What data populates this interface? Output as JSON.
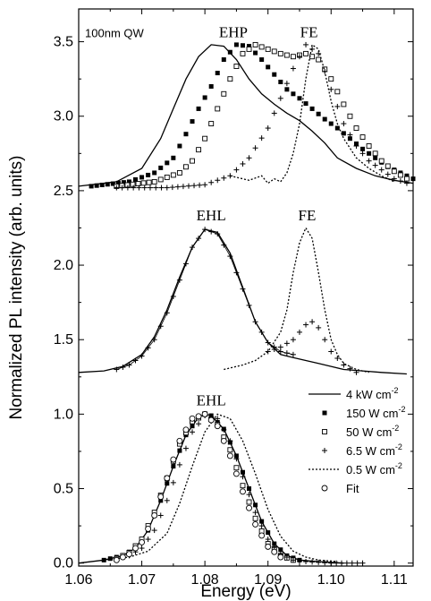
{
  "chart_data": {
    "type": "line",
    "xlabel": "Energy (eV)",
    "ylabel": "Normalized PL intensity (arb. units)",
    "xlim": [
      1.06,
      1.113
    ],
    "ylim": [
      -0.02,
      3.72
    ],
    "x_ticks": [
      "1.06",
      "1.07",
      "1.08",
      "1.09",
      "1.10",
      "1.11"
    ],
    "y_ticks": [
      "0.0",
      "0.5",
      "1.0",
      "1.5",
      "2.0",
      "2.5",
      "3.0",
      "3.5"
    ],
    "grid": false,
    "legend_position": "right",
    "annotations": [
      {
        "text": "100nm QW",
        "x": 1.061,
        "y": 3.53
      },
      {
        "text": "EHP",
        "x": 1.0845,
        "y": 3.53
      },
      {
        "text": "FE",
        "x": 1.0965,
        "y": 3.53
      },
      {
        "text": "EHL",
        "x": 1.081,
        "y": 2.3
      },
      {
        "text": "FE",
        "x": 1.0962,
        "y": 2.3
      },
      {
        "text": "EHL",
        "x": 1.081,
        "y": 1.06
      }
    ],
    "legend": [
      {
        "label": "4 kW cm",
        "sup": "-2",
        "style": "solid"
      },
      {
        "label": "150 W cm",
        "sup": "-2",
        "style": "filled-square"
      },
      {
        "label": "50 W cm",
        "sup": "-2",
        "style": "open-square"
      },
      {
        "label": "6.5 W cm",
        "sup": "-2",
        "style": "plus"
      },
      {
        "label": "0.5 W cm",
        "sup": "-2",
        "style": "dotted"
      },
      {
        "label": "Fit",
        "sup": "",
        "style": "open-circle"
      }
    ],
    "panels": [
      {
        "name": "top",
        "baseline": 2.52,
        "series": [
          {
            "style": "solid",
            "x": [
              1.06,
              1.066,
              1.07,
              1.073,
              1.075,
              1.077,
              1.079,
              1.081,
              1.083,
              1.085,
              1.087,
              1.089,
              1.091,
              1.093,
              1.095,
              1.097,
              1.099,
              1.101,
              1.104,
              1.107,
              1.11,
              1.113
            ],
            "y": [
              2.53,
              2.56,
              2.65,
              2.85,
              3.05,
              3.25,
              3.4,
              3.48,
              3.47,
              3.38,
              3.25,
              3.15,
              3.08,
              3.02,
              2.97,
              2.9,
              2.82,
              2.72,
              2.65,
              2.6,
              2.57,
              2.55
            ]
          },
          {
            "style": "filled-square",
            "x": [
              1.062,
              1.068,
              1.072,
              1.075,
              1.077,
              1.079,
              1.081,
              1.083,
              1.085,
              1.087,
              1.089,
              1.091,
              1.093,
              1.095,
              1.097,
              1.099,
              1.101,
              1.103,
              1.105,
              1.107,
              1.109,
              1.111,
              1.113
            ],
            "y": [
              2.53,
              2.56,
              2.62,
              2.72,
              2.88,
              3.05,
              3.2,
              3.38,
              3.48,
              3.47,
              3.38,
              3.28,
              3.18,
              3.12,
              3.05,
              2.98,
              2.92,
              2.85,
              2.78,
              2.72,
              2.66,
              2.62,
              2.58
            ]
          },
          {
            "style": "open-square",
            "x": [
              1.066,
              1.072,
              1.076,
              1.078,
              1.08,
              1.082,
              1.084,
              1.086,
              1.088,
              1.09,
              1.092,
              1.094,
              1.096,
              1.098,
              1.1,
              1.102,
              1.104,
              1.106,
              1.108,
              1.11,
              1.112
            ],
            "y": [
              2.53,
              2.56,
              2.62,
              2.7,
              2.85,
              3.05,
              3.25,
              3.42,
              3.48,
              3.45,
              3.42,
              3.4,
              3.42,
              3.38,
              3.25,
              3.08,
              2.92,
              2.8,
              2.7,
              2.63,
              2.58
            ]
          },
          {
            "style": "plus",
            "x": [
              1.066,
              1.074,
              1.08,
              1.084,
              1.087,
              1.09,
              1.092,
              1.094,
              1.096,
              1.098,
              1.1,
              1.102,
              1.104,
              1.106,
              1.108,
              1.11,
              1.112
            ],
            "y": [
              2.52,
              2.52,
              2.54,
              2.6,
              2.72,
              2.92,
              3.12,
              3.32,
              3.48,
              3.42,
              3.18,
              2.95,
              2.8,
              2.7,
              2.64,
              2.58,
              2.55
            ]
          },
          {
            "style": "dotted",
            "x": [
              1.084,
              1.087,
              1.089,
              1.09,
              1.091,
              1.092,
              1.093,
              1.094,
              1.095,
              1.096,
              1.097,
              1.098,
              1.099,
              1.1,
              1.101,
              1.102,
              1.104,
              1.106,
              1.108,
              1.11
            ],
            "y": [
              2.6,
              2.57,
              2.6,
              2.55,
              2.58,
              2.56,
              2.62,
              2.75,
              2.95,
              3.25,
              3.48,
              3.45,
              3.3,
              3.1,
              2.95,
              2.85,
              2.72,
              2.65,
              2.6,
              2.56
            ]
          }
        ]
      },
      {
        "name": "middle",
        "baseline": 1.28,
        "series": [
          {
            "style": "solid",
            "x": [
              1.06,
              1.064,
              1.067,
              1.07,
              1.072,
              1.074,
              1.076,
              1.078,
              1.08,
              1.082,
              1.084,
              1.086,
              1.088,
              1.09,
              1.092,
              1.094,
              1.096,
              1.098,
              1.1,
              1.102,
              1.105,
              1.108,
              1.112
            ],
            "y": [
              1.28,
              1.29,
              1.32,
              1.4,
              1.52,
              1.7,
              1.92,
              2.12,
              2.24,
              2.22,
              2.08,
              1.85,
              1.62,
              1.48,
              1.4,
              1.38,
              1.36,
              1.34,
              1.32,
              1.3,
              1.29,
              1.28,
              1.27
            ]
          },
          {
            "style": "fit",
            "x": [
              1.066,
              1.068,
              1.07,
              1.072,
              1.074,
              1.076,
              1.078,
              1.08,
              1.082,
              1.084,
              1.086,
              1.088,
              1.09,
              1.092,
              1.094
            ],
            "y": [
              1.3,
              1.33,
              1.39,
              1.5,
              1.68,
              1.9,
              2.12,
              2.24,
              2.21,
              2.06,
              1.84,
              1.62,
              1.48,
              1.42,
              1.4
            ]
          },
          {
            "style": "dotted",
            "x": [
              1.083,
              1.086,
              1.088,
              1.09,
              1.092,
              1.093,
              1.094,
              1.095,
              1.096,
              1.097,
              1.098,
              1.099,
              1.1,
              1.101,
              1.102,
              1.104,
              1.106
            ],
            "y": [
              1.3,
              1.33,
              1.36,
              1.42,
              1.55,
              1.7,
              1.95,
              2.15,
              2.25,
              2.18,
              1.95,
              1.7,
              1.5,
              1.4,
              1.34,
              1.3,
              1.28
            ]
          },
          {
            "style": "plus",
            "x": [
              1.09,
              1.092,
              1.094,
              1.095,
              1.096,
              1.097,
              1.098,
              1.099,
              1.1,
              1.102,
              1.104
            ],
            "y": [
              1.42,
              1.45,
              1.5,
              1.55,
              1.6,
              1.62,
              1.58,
              1.5,
              1.42,
              1.33,
              1.28
            ]
          }
        ]
      },
      {
        "name": "bottom",
        "baseline": 0.0,
        "series": [
          {
            "style": "solid",
            "x": [
              1.06,
              1.064,
              1.067,
              1.069,
              1.071,
              1.073,
              1.075,
              1.077,
              1.079,
              1.08,
              1.081,
              1.083,
              1.085,
              1.087,
              1.089,
              1.091,
              1.093,
              1.095,
              1.098,
              1.102
            ],
            "y": [
              0.0,
              0.02,
              0.05,
              0.1,
              0.22,
              0.42,
              0.65,
              0.86,
              0.98,
              1.0,
              0.99,
              0.9,
              0.72,
              0.5,
              0.28,
              0.13,
              0.05,
              0.02,
              0.01,
              0.0
            ]
          },
          {
            "style": "filled-square",
            "x": [
              1.064,
              1.067,
              1.069,
              1.071,
              1.073,
              1.075,
              1.077,
              1.079,
              1.08,
              1.081,
              1.083,
              1.085,
              1.087,
              1.089,
              1.091,
              1.093,
              1.095
            ],
            "y": [
              0.02,
              0.05,
              0.1,
              0.22,
              0.42,
              0.65,
              0.86,
              0.98,
              1.0,
              0.99,
              0.9,
              0.72,
              0.5,
              0.28,
              0.13,
              0.05,
              0.02
            ]
          },
          {
            "style": "open-square",
            "x": [
              1.066,
              1.068,
              1.07,
              1.072,
              1.074,
              1.076,
              1.078,
              1.08,
              1.082,
              1.084,
              1.086,
              1.088,
              1.09,
              1.092,
              1.094
            ],
            "y": [
              0.03,
              0.07,
              0.16,
              0.34,
              0.57,
              0.8,
              0.95,
              1.0,
              0.93,
              0.76,
              0.52,
              0.3,
              0.13,
              0.05,
              0.02
            ]
          },
          {
            "style": "plus",
            "x": [
              1.068,
              1.07,
              1.072,
              1.074,
              1.076,
              1.078,
              1.08,
              1.082,
              1.084,
              1.086,
              1.088,
              1.09,
              1.092,
              1.094,
              1.096,
              1.1,
              1.105
            ],
            "y": [
              0.05,
              0.1,
              0.22,
              0.42,
              0.66,
              0.88,
              0.99,
              0.97,
              0.82,
              0.58,
              0.34,
              0.16,
              0.06,
              0.02,
              0.01,
              0.0,
              0.0
            ]
          },
          {
            "style": "dotted",
            "x": [
              1.064,
              1.068,
              1.071,
              1.074,
              1.076,
              1.078,
              1.08,
              1.082,
              1.084,
              1.086,
              1.088,
              1.09,
              1.092,
              1.094,
              1.096,
              1.098,
              1.101
            ],
            "y": [
              0.02,
              0.04,
              0.08,
              0.2,
              0.4,
              0.65,
              0.88,
              1.0,
              0.97,
              0.82,
              0.6,
              0.36,
              0.18,
              0.08,
              0.04,
              0.02,
              0.01
            ]
          },
          {
            "style": "open-circle",
            "x": [
              1.066,
              1.068,
              1.07,
              1.072,
              1.074,
              1.076,
              1.078,
              1.08,
              1.082,
              1.084,
              1.086,
              1.088,
              1.09,
              1.092
            ],
            "y": [
              0.02,
              0.06,
              0.14,
              0.32,
              0.57,
              0.82,
              0.97,
              1.0,
              0.92,
              0.72,
              0.48,
              0.26,
              0.11,
              0.04
            ]
          }
        ]
      }
    ]
  }
}
